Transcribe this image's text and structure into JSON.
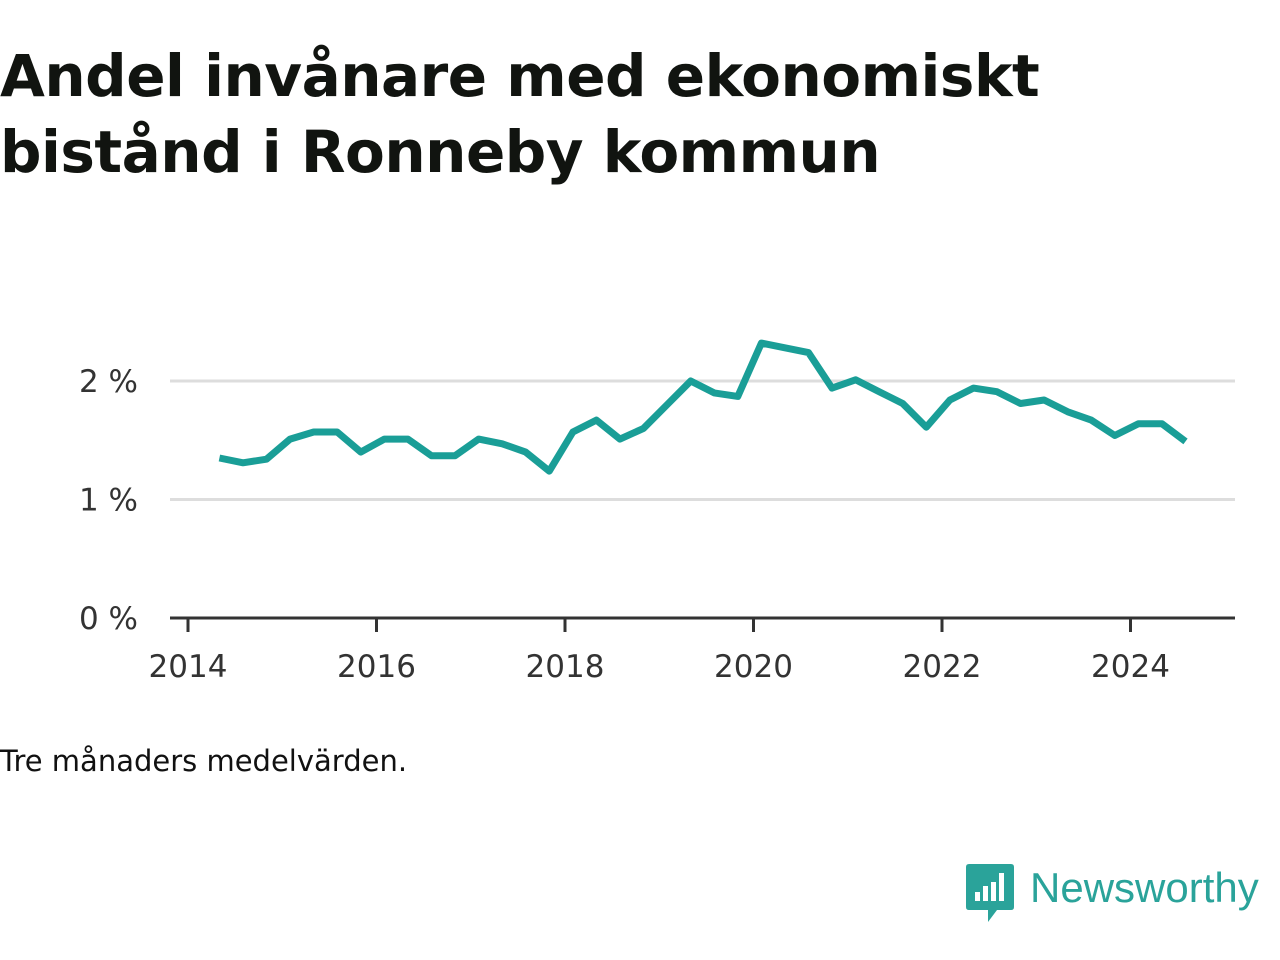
{
  "title": "Andel invånare med ekonomiskt bistånd i Ronneby kommun",
  "note": "Tre månaders medelvärden.",
  "brand": {
    "name": "Newsworthy"
  },
  "colors": {
    "line": "#1a9e97",
    "grid": "#dddddd",
    "axis": "#333333",
    "brand": "#2aa39a"
  },
  "chart_data": {
    "type": "line",
    "title": "Andel invånare med ekonomiskt bistånd i Ronneby kommun",
    "xlabel": "",
    "ylabel": "",
    "x_ticks": [
      "2014",
      "2016",
      "2018",
      "2020",
      "2022",
      "2024"
    ],
    "y_ticks": [
      "0 %",
      "1 %",
      "2 %"
    ],
    "xlim": [
      "2013-11",
      "2025-05"
    ],
    "ylim": [
      0,
      2.4
    ],
    "grid": true,
    "series": [
      {
        "x": [
          "2014-05",
          "2014-08",
          "2014-11",
          "2015-02",
          "2015-05",
          "2015-08",
          "2015-11",
          "2016-02",
          "2016-05",
          "2016-08",
          "2016-11",
          "2017-02",
          "2017-05",
          "2017-08",
          "2017-11",
          "2018-02",
          "2018-05",
          "2018-08",
          "2018-11",
          "2019-02",
          "2019-05",
          "2019-08",
          "2019-11",
          "2020-02",
          "2020-05",
          "2020-08",
          "2020-11",
          "2021-02",
          "2021-05",
          "2021-08",
          "2021-11",
          "2022-02",
          "2022-05",
          "2022-08",
          "2022-11",
          "2023-02",
          "2023-05",
          "2023-08",
          "2023-11",
          "2024-02",
          "2024-05",
          "2024-08"
        ],
        "values": [
          1.35,
          1.31,
          1.34,
          1.51,
          1.57,
          1.57,
          1.4,
          1.51,
          1.51,
          1.37,
          1.37,
          1.51,
          1.47,
          1.4,
          1.24,
          1.57,
          1.67,
          1.51,
          1.6,
          1.8,
          2.0,
          1.9,
          1.87,
          2.32,
          2.28,
          2.24,
          1.94,
          2.01,
          1.91,
          1.81,
          1.61,
          1.84,
          1.94,
          1.91,
          1.81,
          1.84,
          1.74,
          1.67,
          1.54,
          1.64,
          1.64,
          1.49
        ]
      }
    ]
  }
}
